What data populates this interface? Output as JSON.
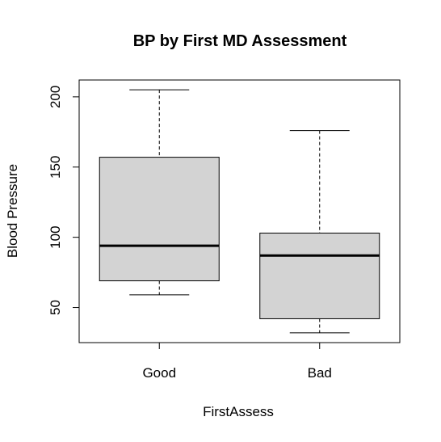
{
  "chart_data": {
    "type": "boxplot",
    "title": "BP by First MD Assessment",
    "xlabel": "FirstAssess",
    "ylabel": "Blood Pressure",
    "categories": [
      "Good",
      "Bad"
    ],
    "boxes": [
      {
        "category": "Good",
        "min": 59,
        "q1": 69,
        "median": 94,
        "q3": 157,
        "max": 205
      },
      {
        "category": "Bad",
        "min": 32,
        "q1": 42,
        "median": 87,
        "q3": 103,
        "max": 176
      }
    ],
    "ylim": [
      25,
      212
    ],
    "yticks": [
      50,
      100,
      150,
      200
    ],
    "ytick_labels": [
      "50",
      "100",
      "150",
      "200"
    ],
    "box_fill": "#d3d3d3",
    "line_color": "#000000",
    "grid": false
  }
}
